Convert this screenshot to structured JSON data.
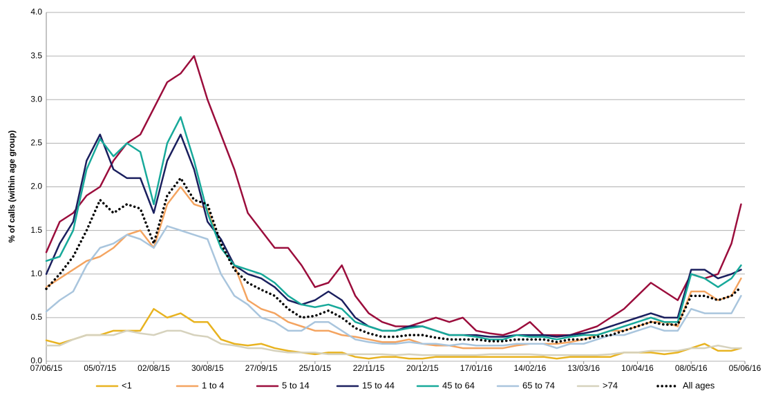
{
  "chart_data": {
    "type": "line",
    "y_label": "% of calls (within age group)",
    "x": [
      "07/06/15",
      "14/06/15",
      "21/06/15",
      "28/06/15",
      "05/07/15",
      "12/07/15",
      "19/07/15",
      "26/07/15",
      "02/08/15",
      "09/08/15",
      "16/08/15",
      "23/08/15",
      "30/08/15",
      "06/09/15",
      "13/09/15",
      "20/09/15",
      "27/09/15",
      "04/10/15",
      "11/10/15",
      "18/10/15",
      "25/10/15",
      "01/11/15",
      "08/11/15",
      "15/11/15",
      "22/11/15",
      "29/11/15",
      "06/12/15",
      "13/12/15",
      "20/12/15",
      "27/12/15",
      "03/01/16",
      "10/01/16",
      "17/01/16",
      "24/01/16",
      "31/01/16",
      "07/02/16",
      "14/02/16",
      "21/02/16",
      "28/02/16",
      "06/03/16",
      "13/03/16",
      "20/03/16",
      "27/03/16",
      "03/04/16",
      "10/04/16",
      "17/04/16",
      "24/04/16",
      "01/05/16",
      "08/05/16",
      "15/05/16",
      "22/05/16",
      "29/05/16",
      "03/06/16"
    ],
    "xlim": [
      "07/06/15",
      "05/06/16"
    ],
    "xticks": [
      "07/06/15",
      "05/07/15",
      "02/08/15",
      "30/08/15",
      "27/09/15",
      "25/10/15",
      "22/11/15",
      "20/12/15",
      "17/01/16",
      "14/02/16",
      "13/03/16",
      "10/04/16",
      "08/05/16",
      "05/06/16"
    ],
    "ylim": [
      0,
      4
    ],
    "yticks": [
      {
        "value": 0,
        "label": "0.0"
      },
      {
        "value": 0.5,
        "label": "0.5"
      },
      {
        "value": 1,
        "label": "1.0"
      },
      {
        "value": 1.5,
        "label": "1.5"
      },
      {
        "value": 2,
        "label": "2.0"
      },
      {
        "value": 2.5,
        "label": "2.5"
      },
      {
        "value": 3,
        "label": "3.0"
      },
      {
        "value": 3.5,
        "label": "3.5"
      },
      {
        "value": 4,
        "label": "4.0"
      }
    ],
    "grid": true,
    "legend": "bottom",
    "series": [
      {
        "name": "<1",
        "color": "#e8b320",
        "style": "solid",
        "values": [
          0.24,
          0.2,
          0.25,
          0.3,
          0.3,
          0.35,
          0.35,
          0.35,
          0.6,
          0.5,
          0.55,
          0.45,
          0.45,
          0.25,
          0.2,
          0.18,
          0.2,
          0.15,
          0.12,
          0.1,
          0.08,
          0.1,
          0.1,
          0.05,
          0.03,
          0.05,
          0.05,
          0.03,
          0.03,
          0.05,
          0.05,
          0.05,
          0.05,
          0.05,
          0.05,
          0.05,
          0.05,
          0.05,
          0.03,
          0.05,
          0.05,
          0.05,
          0.05,
          0.1,
          0.1,
          0.1,
          0.08,
          0.1,
          0.15,
          0.2,
          0.12,
          0.12,
          0.15
        ]
      },
      {
        "name": "1 to 4",
        "color": "#f4a460",
        "style": "solid",
        "values": [
          0.85,
          0.95,
          1.05,
          1.15,
          1.2,
          1.3,
          1.45,
          1.5,
          1.3,
          1.8,
          2.0,
          1.8,
          1.75,
          1.3,
          1.1,
          0.7,
          0.6,
          0.55,
          0.45,
          0.4,
          0.35,
          0.35,
          0.3,
          0.28,
          0.25,
          0.22,
          0.22,
          0.25,
          0.2,
          0.18,
          0.18,
          0.15,
          0.15,
          0.15,
          0.15,
          0.18,
          0.2,
          0.2,
          0.2,
          0.22,
          0.25,
          0.3,
          0.35,
          0.35,
          0.4,
          0.45,
          0.45,
          0.4,
          0.8,
          0.8,
          0.7,
          0.75,
          0.95
        ]
      },
      {
        "name": "5 to 14",
        "color": "#9b0d3c",
        "style": "solid",
        "values": [
          1.25,
          1.6,
          1.7,
          1.9,
          2.0,
          2.3,
          2.5,
          2.6,
          2.9,
          3.2,
          3.3,
          3.5,
          3.0,
          2.6,
          2.2,
          1.7,
          1.5,
          1.3,
          1.3,
          1.1,
          0.85,
          0.9,
          1.1,
          0.75,
          0.55,
          0.45,
          0.4,
          0.4,
          0.45,
          0.5,
          0.45,
          0.5,
          0.35,
          0.32,
          0.3,
          0.35,
          0.45,
          0.3,
          0.3,
          0.3,
          0.35,
          0.4,
          0.5,
          0.6,
          0.75,
          0.9,
          0.8,
          0.7,
          1.0,
          0.95,
          1.0,
          1.35,
          1.8
        ]
      },
      {
        "name": "15 to 44",
        "color": "#1a1f5e",
        "style": "solid",
        "values": [
          1.0,
          1.35,
          1.6,
          2.3,
          2.6,
          2.2,
          2.1,
          2.1,
          1.7,
          2.3,
          2.6,
          2.2,
          1.6,
          1.4,
          1.1,
          1.0,
          0.95,
          0.85,
          0.7,
          0.65,
          0.7,
          0.8,
          0.7,
          0.5,
          0.4,
          0.35,
          0.35,
          0.4,
          0.4,
          0.35,
          0.3,
          0.3,
          0.3,
          0.28,
          0.28,
          0.3,
          0.3,
          0.3,
          0.28,
          0.3,
          0.32,
          0.35,
          0.4,
          0.45,
          0.5,
          0.55,
          0.5,
          0.5,
          1.05,
          1.05,
          0.95,
          1.0,
          1.05
        ]
      },
      {
        "name": "45 to 64",
        "color": "#17a99a",
        "style": "solid",
        "values": [
          1.15,
          1.2,
          1.5,
          2.2,
          2.55,
          2.35,
          2.5,
          2.4,
          1.8,
          2.5,
          2.8,
          2.3,
          1.7,
          1.3,
          1.1,
          1.05,
          1.0,
          0.9,
          0.75,
          0.65,
          0.62,
          0.65,
          0.6,
          0.45,
          0.4,
          0.35,
          0.35,
          0.38,
          0.4,
          0.35,
          0.3,
          0.3,
          0.28,
          0.25,
          0.25,
          0.3,
          0.28,
          0.28,
          0.25,
          0.28,
          0.3,
          0.3,
          0.35,
          0.4,
          0.45,
          0.5,
          0.45,
          0.45,
          1.0,
          0.95,
          0.85,
          0.95,
          1.1
        ]
      },
      {
        "name": "65 to 74",
        "color": "#a9c5dd",
        "style": "solid",
        "values": [
          0.57,
          0.7,
          0.8,
          1.1,
          1.3,
          1.35,
          1.45,
          1.4,
          1.3,
          1.55,
          1.5,
          1.45,
          1.4,
          1.0,
          0.75,
          0.65,
          0.5,
          0.45,
          0.35,
          0.35,
          0.45,
          0.45,
          0.35,
          0.25,
          0.22,
          0.2,
          0.2,
          0.22,
          0.2,
          0.2,
          0.18,
          0.2,
          0.18,
          0.18,
          0.18,
          0.2,
          0.2,
          0.2,
          0.15,
          0.2,
          0.2,
          0.25,
          0.3,
          0.3,
          0.35,
          0.4,
          0.35,
          0.35,
          0.6,
          0.55,
          0.55,
          0.55,
          0.75
        ]
      },
      {
        "name": ">74",
        "color": "#d6d2bd",
        "style": "solid",
        "values": [
          0.18,
          0.18,
          0.25,
          0.3,
          0.3,
          0.3,
          0.35,
          0.32,
          0.3,
          0.35,
          0.35,
          0.3,
          0.28,
          0.2,
          0.18,
          0.15,
          0.15,
          0.12,
          0.1,
          0.1,
          0.1,
          0.08,
          0.08,
          0.08,
          0.08,
          0.08,
          0.07,
          0.08,
          0.07,
          0.07,
          0.07,
          0.07,
          0.07,
          0.08,
          0.08,
          0.08,
          0.08,
          0.07,
          0.07,
          0.07,
          0.07,
          0.07,
          0.08,
          0.1,
          0.1,
          0.12,
          0.12,
          0.12,
          0.15,
          0.15,
          0.18,
          0.15,
          0.15
        ]
      },
      {
        "name": "All ages",
        "color": "#000000",
        "style": "dotted",
        "values": [
          0.83,
          1.0,
          1.2,
          1.5,
          1.85,
          1.7,
          1.8,
          1.75,
          1.35,
          1.9,
          2.1,
          1.85,
          1.8,
          1.35,
          1.05,
          0.9,
          0.82,
          0.75,
          0.6,
          0.5,
          0.52,
          0.58,
          0.5,
          0.38,
          0.32,
          0.28,
          0.28,
          0.3,
          0.3,
          0.27,
          0.25,
          0.25,
          0.25,
          0.23,
          0.23,
          0.25,
          0.25,
          0.25,
          0.22,
          0.25,
          0.25,
          0.28,
          0.3,
          0.35,
          0.4,
          0.45,
          0.42,
          0.42,
          0.75,
          0.75,
          0.7,
          0.75,
          0.85
        ]
      }
    ]
  }
}
